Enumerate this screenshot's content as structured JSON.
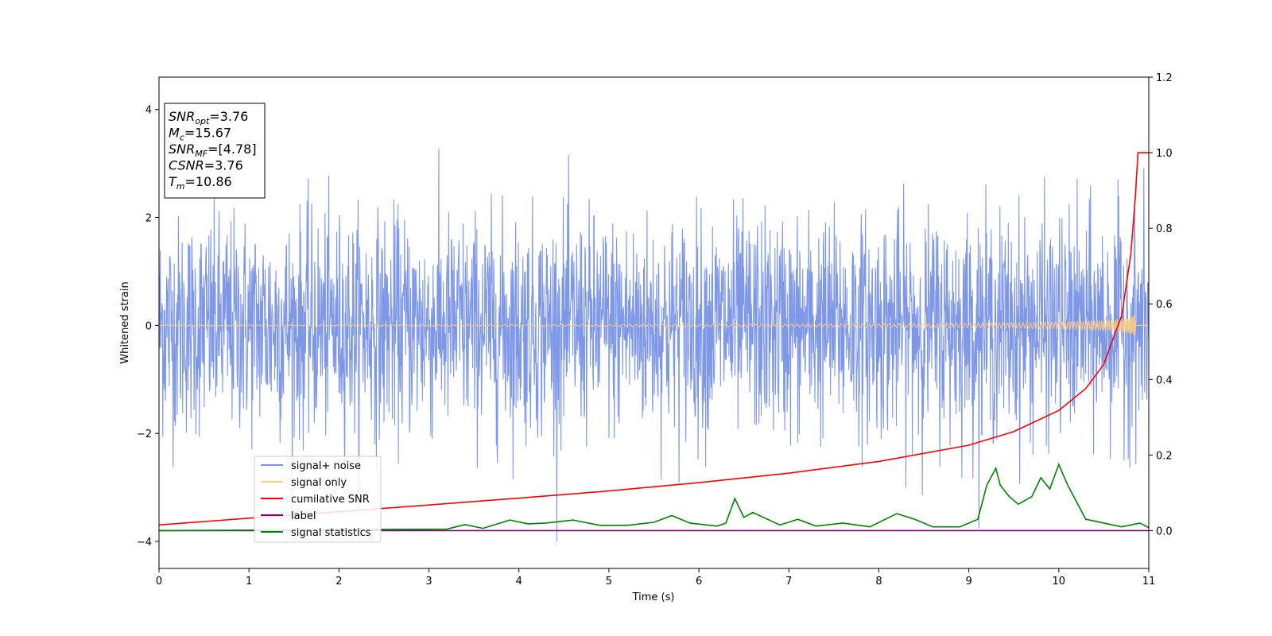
{
  "chart_data": {
    "type": "line",
    "xlabel": "Time (s)",
    "ylabel": "Whitened strain",
    "xlim": [
      0,
      11
    ],
    "ylim": [
      -4.5,
      4.6
    ],
    "ylim_right": [
      -0.1,
      1.2
    ],
    "xticks": [
      "0",
      "1",
      "2",
      "3",
      "4",
      "5",
      "6",
      "7",
      "8",
      "9",
      "10",
      "11"
    ],
    "yticks": [
      "4",
      "2",
      "0",
      "−2",
      "−4"
    ],
    "yticks_right": [
      "1.2",
      "1.0",
      "0.8",
      "0.6",
      "0.4",
      "0.2",
      "0.0"
    ],
    "grid": false,
    "legend_position": "lower-left",
    "annotation": {
      "lines": [
        {
          "main": "SNR",
          "sub": "opt",
          "value": "=3.76"
        },
        {
          "main": "M",
          "sub": "c",
          "value": "=15.67"
        },
        {
          "main": "SNR",
          "sub": "MF",
          "value": "=[4.78]"
        },
        {
          "main": "CSNR",
          "sub": "",
          "value": "=3.76"
        },
        {
          "main": "T",
          "sub": "m",
          "value": "=10.86"
        }
      ]
    },
    "series": [
      {
        "name": "signal+ noise",
        "color": "#7791e6",
        "axis": "left",
        "description": "noise band approx ±2.5 with spikes to ±4"
      },
      {
        "name": "signal only",
        "color": "#ffcc80",
        "axis": "left"
      },
      {
        "name": "cumilative SNR",
        "color": "#ff0000",
        "axis": "right",
        "x": [
          0,
          1,
          2,
          3,
          4,
          5,
          6,
          7,
          8,
          9,
          9.5,
          10,
          10.3,
          10.5,
          10.7,
          10.8,
          10.85,
          10.88,
          11
        ],
        "y": [
          0.015,
          0.033,
          0.05,
          0.068,
          0.086,
          0.105,
          0.127,
          0.152,
          0.183,
          0.226,
          0.262,
          0.318,
          0.376,
          0.44,
          0.57,
          0.73,
          0.88,
          1.0,
          1.0
        ]
      },
      {
        "name": "label",
        "color": "#800080",
        "axis": "right",
        "x": [
          0,
          11
        ],
        "y": [
          0.0,
          0.0
        ]
      },
      {
        "name": "signal statistics",
        "color": "#008000",
        "axis": "right",
        "x": [
          0,
          3.2,
          3.4,
          3.6,
          3.9,
          4.1,
          4.3,
          4.6,
          4.9,
          5.2,
          5.5,
          5.7,
          5.9,
          6.2,
          6.3,
          6.4,
          6.5,
          6.6,
          6.9,
          7.1,
          7.3,
          7.6,
          7.9,
          8.2,
          8.4,
          8.6,
          8.9,
          9.1,
          9.2,
          9.3,
          9.35,
          9.45,
          9.55,
          9.7,
          9.8,
          9.9,
          10.0,
          10.1,
          10.3,
          10.5,
          10.7,
          10.9,
          11
        ],
        "y": [
          0.0,
          0.004,
          0.016,
          0.006,
          0.028,
          0.018,
          0.02,
          0.028,
          0.014,
          0.014,
          0.022,
          0.04,
          0.02,
          0.012,
          0.02,
          0.085,
          0.035,
          0.048,
          0.015,
          0.03,
          0.012,
          0.02,
          0.01,
          0.045,
          0.03,
          0.01,
          0.01,
          0.03,
          0.12,
          0.165,
          0.12,
          0.09,
          0.07,
          0.09,
          0.14,
          0.11,
          0.175,
          0.12,
          0.03,
          0.02,
          0.01,
          0.02,
          0.008
        ]
      }
    ]
  }
}
